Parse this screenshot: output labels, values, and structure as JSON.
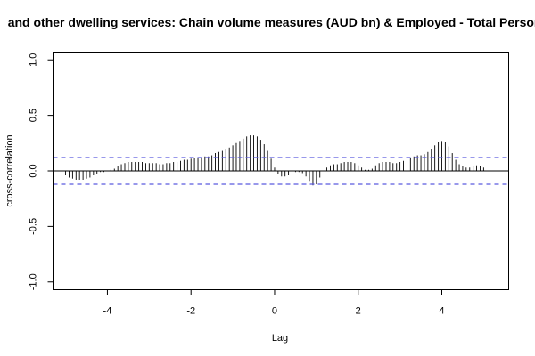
{
  "chart_data": {
    "type": "line",
    "subtype": "cross-correlation (ccf) plot",
    "title": "and other dwelling services: Chain volume measures (AUD bn) & Employed - Total Persons",
    "xlabel": "Lag",
    "ylabel": "cross-correlation",
    "xlim": [
      -5.3,
      5.6
    ],
    "ylim": [
      -1.07,
      1.07
    ],
    "xticks": [
      -4,
      -2,
      0,
      2,
      4
    ],
    "xtick_labels": [
      "-4",
      "-2",
      "0",
      "2",
      "4"
    ],
    "yticks": [
      -1.0,
      -0.5,
      0.0,
      0.5,
      1.0
    ],
    "ytick_labels": [
      "-1.0",
      "-0.5",
      "0.0",
      "0.5",
      "1.0"
    ],
    "zero_line": 0,
    "confidence_bound": 0.12,
    "bar_color": "#000000",
    "bound_color": "#5a5adf",
    "series": [
      {
        "lags": [
          -5.0,
          -4.917,
          -4.833,
          -4.75,
          -4.667,
          -4.583,
          -4.5,
          -4.417,
          -4.333,
          -4.25,
          -4.167,
          -4.083,
          -4.0,
          -3.917,
          -3.833,
          -3.75,
          -3.667,
          -3.583,
          -3.5,
          -3.417,
          -3.333,
          -3.25,
          -3.167,
          -3.083,
          -3.0,
          -2.917,
          -2.833,
          -2.75,
          -2.667,
          -2.583,
          -2.5,
          -2.417,
          -2.333,
          -2.25,
          -2.167,
          -2.083,
          -2.0,
          -1.917,
          -1.833,
          -1.75,
          -1.667,
          -1.583,
          -1.5,
          -1.417,
          -1.333,
          -1.25,
          -1.167,
          -1.083,
          -1.0,
          -0.917,
          -0.833,
          -0.75,
          -0.667,
          -0.583,
          -0.5,
          -0.417,
          -0.333,
          -0.25,
          -0.167,
          -0.083,
          0.0,
          0.083,
          0.167,
          0.25,
          0.333,
          0.417,
          0.5,
          0.583,
          0.667,
          0.75,
          0.833,
          0.917,
          1.0,
          1.083,
          1.167,
          1.25,
          1.333,
          1.417,
          1.5,
          1.583,
          1.667,
          1.75,
          1.833,
          1.917,
          2.0,
          2.083,
          2.167,
          2.25,
          2.333,
          2.417,
          2.5,
          2.583,
          2.667,
          2.75,
          2.833,
          2.917,
          3.0,
          3.083,
          3.167,
          3.25,
          3.333,
          3.417,
          3.5,
          3.583,
          3.667,
          3.75,
          3.833,
          3.917,
          4.0,
          4.083,
          4.167,
          4.25,
          4.333,
          4.417,
          4.5,
          4.583,
          4.667,
          4.75,
          4.833,
          4.917,
          5.0
        ],
        "values": [
          -0.04,
          -0.06,
          -0.07,
          -0.08,
          -0.08,
          -0.08,
          -0.07,
          -0.06,
          -0.04,
          -0.03,
          -0.01,
          -0.01,
          0.0,
          0.01,
          0.02,
          0.04,
          0.06,
          0.07,
          0.08,
          0.08,
          0.08,
          0.08,
          0.08,
          0.07,
          0.07,
          0.07,
          0.07,
          0.06,
          0.06,
          0.07,
          0.07,
          0.08,
          0.08,
          0.09,
          0.1,
          0.1,
          0.11,
          0.12,
          0.12,
          0.12,
          0.13,
          0.13,
          0.14,
          0.16,
          0.17,
          0.18,
          0.2,
          0.21,
          0.23,
          0.25,
          0.27,
          0.29,
          0.31,
          0.32,
          0.32,
          0.31,
          0.28,
          0.24,
          0.18,
          0.11,
          0.03,
          -0.03,
          -0.05,
          -0.05,
          -0.04,
          -0.02,
          -0.01,
          -0.01,
          -0.02,
          -0.05,
          -0.09,
          -0.13,
          -0.12,
          -0.06,
          0.0,
          0.03,
          0.05,
          0.06,
          0.06,
          0.07,
          0.08,
          0.08,
          0.08,
          0.07,
          0.05,
          0.03,
          0.01,
          0.01,
          0.02,
          0.05,
          0.07,
          0.08,
          0.08,
          0.08,
          0.07,
          0.07,
          0.08,
          0.09,
          0.1,
          0.12,
          0.13,
          0.14,
          0.14,
          0.15,
          0.17,
          0.2,
          0.23,
          0.26,
          0.27,
          0.26,
          0.22,
          0.16,
          0.1,
          0.06,
          0.04,
          0.03,
          0.03,
          0.04,
          0.05,
          0.04,
          0.03
        ]
      }
    ]
  }
}
